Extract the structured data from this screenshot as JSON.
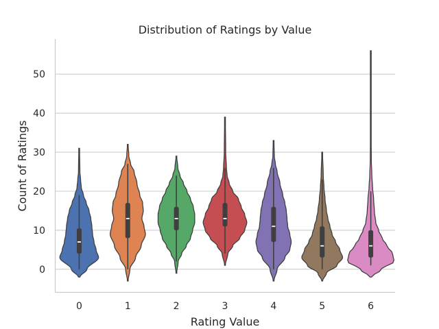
{
  "chart_data": {
    "type": "violin",
    "title": "Distribution of Ratings by Value",
    "xlabel": "Rating Value",
    "ylabel": "Count of Ratings",
    "grid": "horizontal",
    "ylim": [
      -6,
      59
    ],
    "yticks": [
      0,
      10,
      20,
      30,
      40,
      50
    ],
    "categories": [
      "0",
      "1",
      "2",
      "3",
      "4",
      "5",
      "6"
    ],
    "colors": [
      "#4c72b0",
      "#dd8452",
      "#55a868",
      "#c44e52",
      "#8172b3",
      "#937860",
      "#da8bc3"
    ],
    "violins": [
      {
        "category": "0",
        "min": -2,
        "max": 31,
        "q1": 4,
        "median": 7,
        "q3": 10.5,
        "whisker_low": 0,
        "whisker_high": 19,
        "density": [
          [
            -2,
            0.02
          ],
          [
            0,
            0.22
          ],
          [
            3,
            0.55
          ],
          [
            5,
            0.48
          ],
          [
            7,
            0.42
          ],
          [
            9,
            0.38
          ],
          [
            11,
            0.36
          ],
          [
            13,
            0.33
          ],
          [
            15,
            0.28
          ],
          [
            17,
            0.2
          ],
          [
            19,
            0.12
          ],
          [
            21,
            0.06
          ],
          [
            23,
            0.04
          ],
          [
            25,
            0.02
          ],
          [
            31,
            0.01
          ]
        ]
      },
      {
        "category": "1",
        "min": -3,
        "max": 32,
        "q1": 8,
        "median": 13,
        "q3": 17,
        "whisker_low": 0,
        "whisker_high": 27,
        "density": [
          [
            -3,
            0.01
          ],
          [
            0,
            0.06
          ],
          [
            3,
            0.22
          ],
          [
            6,
            0.38
          ],
          [
            9,
            0.5
          ],
          [
            11,
            0.46
          ],
          [
            13,
            0.4
          ],
          [
            15,
            0.44
          ],
          [
            17,
            0.42
          ],
          [
            19,
            0.34
          ],
          [
            22,
            0.26
          ],
          [
            25,
            0.18
          ],
          [
            27,
            0.08
          ],
          [
            29,
            0.03
          ],
          [
            32,
            0.01
          ]
        ]
      },
      {
        "category": "2",
        "min": -1,
        "max": 29,
        "q1": 10,
        "median": 13,
        "q3": 16,
        "whisker_low": 2,
        "whisker_high": 24,
        "density": [
          [
            -1,
            0.01
          ],
          [
            2,
            0.05
          ],
          [
            4,
            0.15
          ],
          [
            6,
            0.28
          ],
          [
            8,
            0.4
          ],
          [
            10,
            0.46
          ],
          [
            12,
            0.52
          ],
          [
            14,
            0.52
          ],
          [
            16,
            0.48
          ],
          [
            18,
            0.4
          ],
          [
            20,
            0.3
          ],
          [
            22,
            0.2
          ],
          [
            24,
            0.1
          ],
          [
            26,
            0.04
          ],
          [
            29,
            0.01
          ]
        ]
      },
      {
        "category": "3",
        "min": 1,
        "max": 39,
        "q1": 11,
        "median": 13,
        "q3": 17,
        "whisker_low": 4,
        "whisker_high": 26,
        "density": [
          [
            1,
            0.01
          ],
          [
            4,
            0.08
          ],
          [
            6,
            0.22
          ],
          [
            8,
            0.42
          ],
          [
            10,
            0.56
          ],
          [
            12,
            0.62
          ],
          [
            14,
            0.56
          ],
          [
            16,
            0.46
          ],
          [
            18,
            0.38
          ],
          [
            20,
            0.22
          ],
          [
            22,
            0.12
          ],
          [
            24,
            0.06
          ],
          [
            26,
            0.04
          ],
          [
            30,
            0.02
          ],
          [
            39,
            0.01
          ]
        ]
      },
      {
        "category": "4",
        "min": -3,
        "max": 33,
        "q1": 7,
        "median": 11,
        "q3": 16,
        "whisker_low": 0,
        "whisker_high": 26,
        "density": [
          [
            -3,
            0.01
          ],
          [
            0,
            0.1
          ],
          [
            3,
            0.32
          ],
          [
            5,
            0.46
          ],
          [
            7,
            0.5
          ],
          [
            9,
            0.46
          ],
          [
            11,
            0.4
          ],
          [
            13,
            0.38
          ],
          [
            15,
            0.36
          ],
          [
            17,
            0.32
          ],
          [
            19,
            0.26
          ],
          [
            22,
            0.18
          ],
          [
            25,
            0.1
          ],
          [
            27,
            0.05
          ],
          [
            29,
            0.02
          ],
          [
            33,
            0.01
          ]
        ]
      },
      {
        "category": "5",
        "min": -3,
        "max": 30,
        "q1": 3,
        "median": 6,
        "q3": 11,
        "whisker_low": 0,
        "whisker_high": 23,
        "density": [
          [
            -3,
            0.01
          ],
          [
            -1,
            0.12
          ],
          [
            1,
            0.42
          ],
          [
            3,
            0.58
          ],
          [
            5,
            0.5
          ],
          [
            7,
            0.38
          ],
          [
            9,
            0.28
          ],
          [
            11,
            0.22
          ],
          [
            13,
            0.16
          ],
          [
            15,
            0.12
          ],
          [
            18,
            0.08
          ],
          [
            21,
            0.05
          ],
          [
            24,
            0.03
          ],
          [
            30,
            0.01
          ]
        ]
      },
      {
        "category": "6",
        "min": -2,
        "max": 56,
        "q1": 3,
        "median": 6,
        "q3": 10,
        "whisker_low": 1,
        "whisker_high": 20,
        "density": [
          [
            -2,
            0.02
          ],
          [
            0,
            0.3
          ],
          [
            2,
            0.66
          ],
          [
            4,
            0.62
          ],
          [
            6,
            0.46
          ],
          [
            8,
            0.32
          ],
          [
            10,
            0.22
          ],
          [
            12,
            0.14
          ],
          [
            15,
            0.1
          ],
          [
            18,
            0.08
          ],
          [
            21,
            0.05
          ],
          [
            24,
            0.03
          ],
          [
            28,
            0.015
          ],
          [
            35,
            0.008
          ],
          [
            45,
            0.005
          ],
          [
            56,
            0.003
          ]
        ]
      }
    ]
  }
}
